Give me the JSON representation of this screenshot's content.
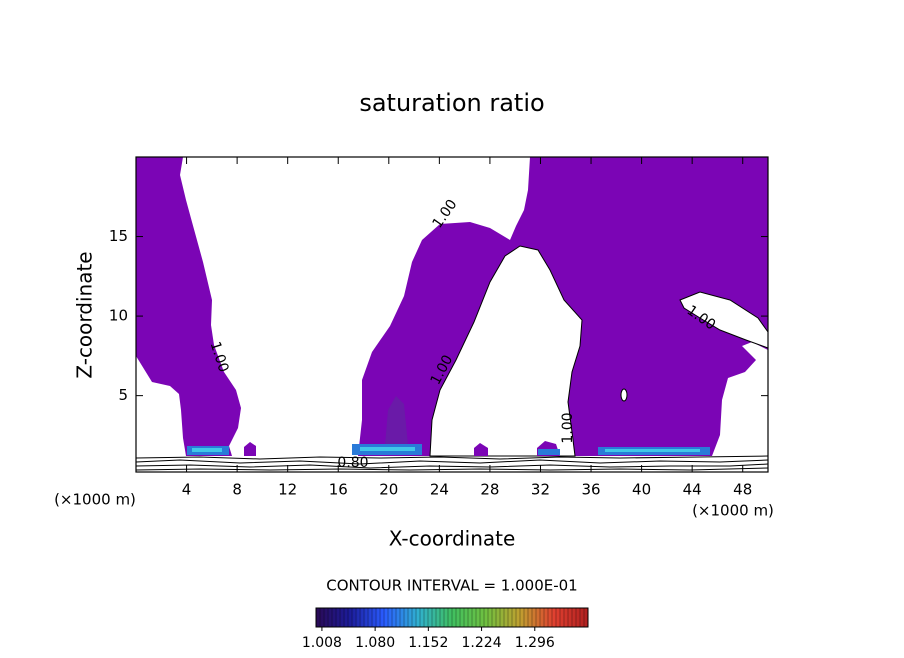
{
  "chart_data": {
    "type": "contour",
    "title": "saturation ratio",
    "x_label": "X-coordinate",
    "y_label": "Z-coordinate",
    "x_unit": "(×1000 m)",
    "y_unit": "(×1000 m)",
    "xlim": [
      0,
      50
    ],
    "ylim": [
      0.2,
      20
    ],
    "xticks": [
      4,
      8,
      12,
      16,
      20,
      24,
      28,
      32,
      36,
      40,
      44,
      48
    ],
    "yticks": [
      5,
      10,
      15
    ],
    "fill_color": "#7b05b5",
    "contour_labels": [
      "1.00",
      "1.00",
      "1.00",
      "1.00",
      "1.00",
      "0.80"
    ],
    "contour_interval_text": "CONTOUR INTERVAL = 1.000E-01",
    "colorbar": {
      "lim": [
        1.0,
        1.368
      ],
      "ticks": [
        {
          "value": 1.008,
          "label": "1.008"
        },
        {
          "value": 1.08,
          "label": "1.080"
        },
        {
          "value": 1.152,
          "label": "1.152"
        },
        {
          "value": 1.224,
          "label": "1.224"
        },
        {
          "value": 1.296,
          "label": "1.296"
        }
      ],
      "colors": [
        "#2a0a55",
        "#1c1c9a",
        "#2a5cff",
        "#30b0d0",
        "#40c060",
        "#70c040",
        "#c0a030",
        "#e04030",
        "#b02020"
      ]
    }
  }
}
